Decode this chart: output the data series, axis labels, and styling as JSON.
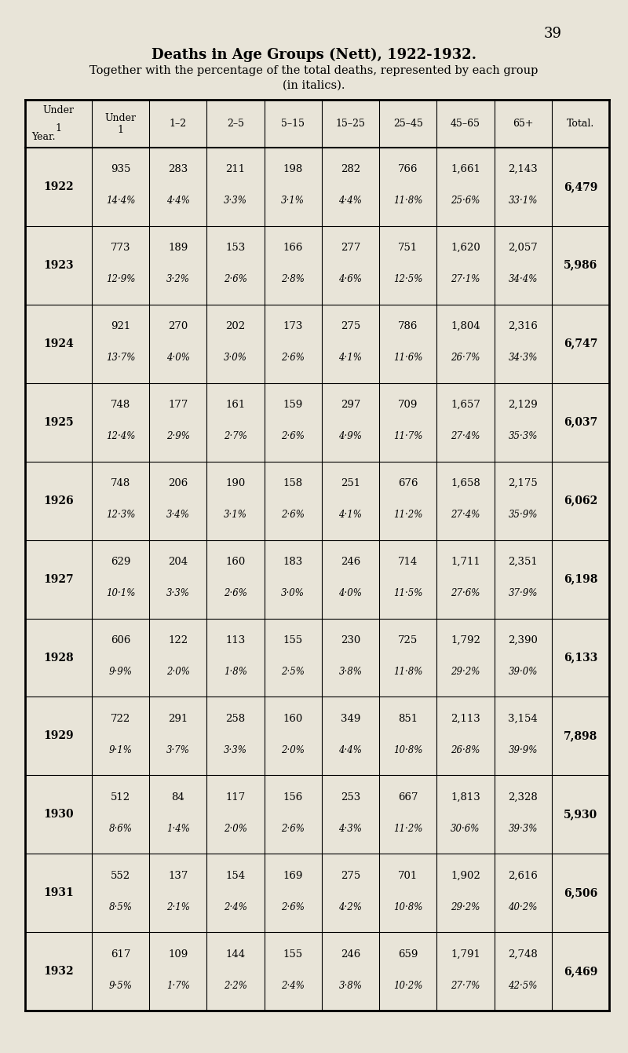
{
  "page_number": "39",
  "title": "Deaths in Age Groups (Nett), 1922-1932.",
  "subtitle1": "Together with the percentage of the total deaths, represented by each group",
  "subtitle2": "(in italics).",
  "bg_color": "#e8e4d8",
  "headers": [
    "Year.",
    "Under\n1",
    "1–2",
    "2–5",
    "5–15",
    "15–25",
    "25–45",
    "45–65",
    "65+",
    "Total."
  ],
  "rows": [
    {
      "year": "1922",
      "values": [
        "935",
        "283",
        "211",
        "198",
        "282",
        "766",
        "1,661",
        "2,143"
      ],
      "percents": [
        "14·4%",
        "4·4%",
        "3·3%",
        "3·1%",
        "4·4%",
        "11·8%",
        "25·6%",
        "33·1%"
      ],
      "total": "6,479"
    },
    {
      "year": "1923",
      "values": [
        "773",
        "189",
        "153",
        "166",
        "277",
        "751",
        "1,620",
        "2,057"
      ],
      "percents": [
        "12·9%",
        "3·2%",
        "2·6%",
        "2·8%",
        "4·6%",
        "12·5%",
        "27·1%",
        "34·4%"
      ],
      "total": "5,986"
    },
    {
      "year": "1924",
      "values": [
        "921",
        "270",
        "202",
        "173",
        "275",
        "786",
        "1,804",
        "2,316"
      ],
      "percents": [
        "13·7%",
        "4·0%",
        "3·0%",
        "2·6%",
        "4·1%",
        "11·6%",
        "26·7%",
        "34·3%"
      ],
      "total": "6,747"
    },
    {
      "year": "1925",
      "values": [
        "748",
        "177",
        "161",
        "159",
        "297",
        "709",
        "1,657",
        "2,129"
      ],
      "percents": [
        "12·4%",
        "2·9%",
        "2·7%",
        "2·6%",
        "4·9%",
        "11·7%",
        "27·4%",
        "35·3%"
      ],
      "total": "6,037"
    },
    {
      "year": "1926",
      "values": [
        "748",
        "206",
        "190",
        "158",
        "251",
        "676",
        "1,658",
        "2,175"
      ],
      "percents": [
        "12·3%",
        "3·4%",
        "3·1%",
        "2·6%",
        "4·1%",
        "11·2%",
        "27·4%",
        "35·9%"
      ],
      "total": "6,062"
    },
    {
      "year": "1927",
      "values": [
        "629",
        "204",
        "160",
        "183",
        "246",
        "714",
        "1,711",
        "2,351"
      ],
      "percents": [
        "10·1%",
        "3·3%",
        "2·6%",
        "3·0%",
        "4·0%",
        "11·5%",
        "27·6%",
        "37·9%"
      ],
      "total": "6,198"
    },
    {
      "year": "1928",
      "values": [
        "606",
        "122",
        "113",
        "155",
        "230",
        "725",
        "1,792",
        "2,390"
      ],
      "percents": [
        "9·9%",
        "2·0%",
        "1·8%",
        "2·5%",
        "3·8%",
        "11·8%",
        "29·2%",
        "39·0%"
      ],
      "total": "6,133"
    },
    {
      "year": "1929",
      "values": [
        "722",
        "291",
        "258",
        "160",
        "349",
        "851",
        "2,113",
        "3,154"
      ],
      "percents": [
        "9·1%",
        "3·7%",
        "3·3%",
        "2·0%",
        "4·4%",
        "10·8%",
        "26·8%",
        "39·9%"
      ],
      "total": "7,898"
    },
    {
      "year": "1930",
      "values": [
        "512",
        "84",
        "117",
        "156",
        "253",
        "667",
        "1,813",
        "2,328"
      ],
      "percents": [
        "8·6%",
        "1·4%",
        "2·0%",
        "2·6%",
        "4·3%",
        "11·2%",
        "30·6%",
        "39·3%"
      ],
      "total": "5,930"
    },
    {
      "year": "1931",
      "values": [
        "552",
        "137",
        "154",
        "169",
        "275",
        "701",
        "1,902",
        "2,616"
      ],
      "percents": [
        "8·5%",
        "2·1%",
        "2·4%",
        "2·6%",
        "4·2%",
        "10·8%",
        "29·2%",
        "40·2%"
      ],
      "total": "6,506"
    },
    {
      "year": "1932",
      "values": [
        "617",
        "109",
        "144",
        "155",
        "246",
        "659",
        "1,791",
        "2,748"
      ],
      "percents": [
        "9·5%",
        "1·7%",
        "2·2%",
        "2·4%",
        "3·8%",
        "10·2%",
        "27·7%",
        "42·5%"
      ],
      "total": "6,469"
    }
  ]
}
